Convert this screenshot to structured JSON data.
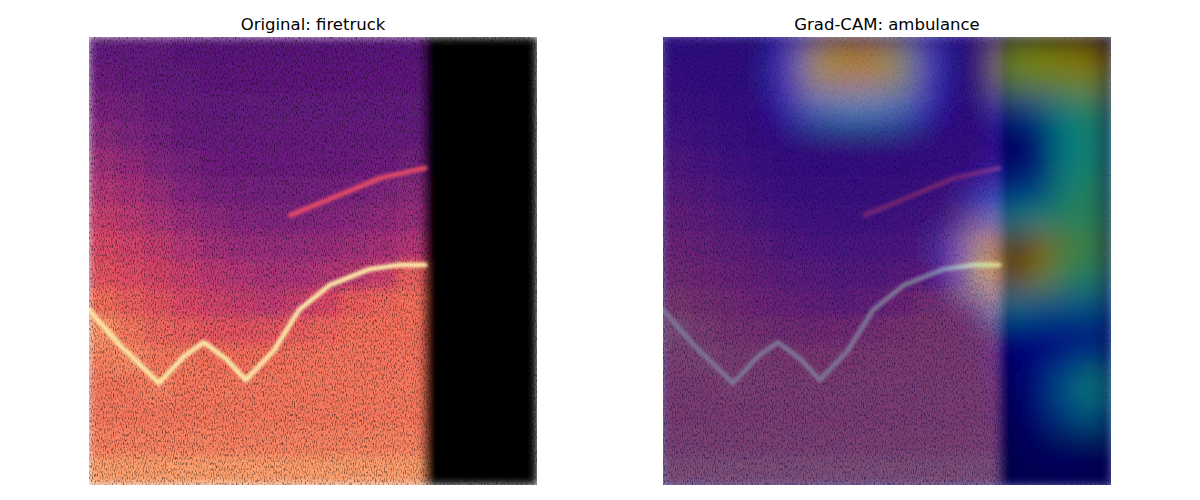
{
  "chart_data": [
    {
      "type": "image",
      "title": "Original: firetruck",
      "tick_labels": false,
      "xlim": [
        0,
        16
      ],
      "ylim": [
        16,
        0
      ],
      "cells": [
        [
          0.3,
          0.3,
          0.3,
          0.28,
          0.28,
          0.28,
          0.28,
          0.28,
          0.28,
          0.28,
          0.28,
          0.28,
          0,
          0,
          0,
          0
        ],
        [
          0.33,
          0.31,
          0.3,
          0.3,
          0.29,
          0.29,
          0.29,
          0.29,
          0.29,
          0.29,
          0.29,
          0.29,
          0,
          0,
          0,
          0
        ],
        [
          0.36,
          0.34,
          0.32,
          0.31,
          0.3,
          0.3,
          0.3,
          0.3,
          0.3,
          0.3,
          0.3,
          0.3,
          0,
          0,
          0,
          0
        ],
        [
          0.4,
          0.37,
          0.34,
          0.32,
          0.31,
          0.31,
          0.31,
          0.31,
          0.31,
          0.31,
          0.31,
          0.31,
          0,
          0,
          0,
          0
        ],
        [
          0.45,
          0.42,
          0.38,
          0.35,
          0.33,
          0.32,
          0.32,
          0.32,
          0.32,
          0.32,
          0.33,
          0.34,
          0,
          0,
          0,
          0
        ],
        [
          0.5,
          0.47,
          0.43,
          0.39,
          0.36,
          0.35,
          0.34,
          0.34,
          0.35,
          0.36,
          0.38,
          0.4,
          0,
          0,
          0,
          0
        ],
        [
          0.55,
          0.52,
          0.48,
          0.44,
          0.41,
          0.39,
          0.38,
          0.38,
          0.39,
          0.4,
          0.42,
          0.44,
          0,
          0,
          0,
          0
        ],
        [
          0.6,
          0.57,
          0.54,
          0.5,
          0.46,
          0.44,
          0.43,
          0.43,
          0.44,
          0.45,
          0.47,
          0.5,
          0,
          0,
          0,
          0
        ],
        [
          0.63,
          0.61,
          0.58,
          0.55,
          0.52,
          0.5,
          0.48,
          0.48,
          0.5,
          0.52,
          0.56,
          0.66,
          0,
          0,
          0,
          0
        ],
        [
          0.7,
          0.66,
          0.63,
          0.6,
          0.57,
          0.55,
          0.53,
          0.56,
          0.6,
          0.66,
          0.68,
          0.7,
          0,
          0,
          0,
          0
        ],
        [
          0.78,
          0.72,
          0.68,
          0.66,
          0.64,
          0.63,
          0.64,
          0.66,
          0.68,
          0.7,
          0.7,
          0.7,
          0,
          0,
          0,
          0
        ],
        [
          0.74,
          0.76,
          0.72,
          0.72,
          0.7,
          0.7,
          0.7,
          0.71,
          0.71,
          0.71,
          0.71,
          0.71,
          0,
          0,
          0,
          0
        ],
        [
          0.72,
          0.72,
          0.74,
          0.72,
          0.72,
          0.72,
          0.72,
          0.72,
          0.72,
          0.72,
          0.72,
          0.72,
          0,
          0,
          0,
          0
        ],
        [
          0.72,
          0.72,
          0.72,
          0.72,
          0.72,
          0.72,
          0.72,
          0.72,
          0.72,
          0.72,
          0.72,
          0.72,
          0,
          0,
          0,
          0
        ],
        [
          0.74,
          0.74,
          0.74,
          0.74,
          0.74,
          0.74,
          0.74,
          0.74,
          0.74,
          0.74,
          0.74,
          0.74,
          0,
          0,
          0,
          0
        ],
        [
          0.8,
          0.8,
          0.8,
          0.8,
          0.8,
          0.8,
          0.8,
          0.8,
          0.8,
          0.8,
          0.8,
          0.8,
          0,
          0,
          0,
          0
        ]
      ],
      "tracks": [
        {
          "intensity": 0.95,
          "x": [
            0,
            1.1,
            2.5,
            3.4,
            4.1,
            4.9,
            5.6,
            6.6,
            7.5,
            8.6,
            10,
            11.1,
            12
          ],
          "y": [
            9.75,
            11,
            12.36,
            11.4,
            10.9,
            11.5,
            12.25,
            11.2,
            9.75,
            8.86,
            8.3,
            8.14,
            8.14
          ]
        },
        {
          "intensity": 0.6,
          "x": [
            7.2,
            8.96,
            10.4,
            12
          ],
          "y": [
            6.36,
            5.64,
            5.04,
            4.68
          ]
        }
      ]
    },
    {
      "type": "heatmap",
      "title": "Grad-CAM: ambulance",
      "tick_labels": false,
      "xlim": [
        0,
        16
      ],
      "ylim": [
        16,
        0
      ],
      "cells": [
        [
          0,
          0,
          0,
          0,
          0.2,
          0.6,
          0.65,
          0.65,
          0.55,
          0.2,
          0,
          0,
          0.6,
          0.62,
          0.65,
          0.7
        ],
        [
          0,
          0,
          0,
          0,
          0.2,
          0.6,
          0.65,
          0.65,
          0.55,
          0.2,
          0,
          0,
          0.55,
          0.58,
          0.6,
          0.62
        ],
        [
          0,
          0,
          0,
          0,
          0.1,
          0.3,
          0.35,
          0.35,
          0.3,
          0.1,
          0,
          0,
          0.2,
          0.3,
          0.4,
          0.45
        ],
        [
          0,
          0,
          0,
          0,
          0,
          0,
          0,
          0,
          0,
          0,
          0,
          0,
          0.08,
          0.1,
          0.38,
          0.42
        ],
        [
          0,
          0,
          0,
          0,
          0,
          0,
          0,
          0,
          0,
          0,
          0,
          0,
          0.08,
          0.1,
          0.38,
          0.42
        ],
        [
          0,
          0,
          0,
          0,
          0,
          0,
          0,
          0,
          0,
          0,
          0,
          0.1,
          0.2,
          0.25,
          0.42,
          0.45
        ],
        [
          0,
          0,
          0,
          0,
          0,
          0,
          0,
          0,
          0,
          0,
          0,
          0.25,
          0.35,
          0.4,
          0.45,
          0.45
        ],
        [
          0,
          0,
          0,
          0,
          0,
          0,
          0,
          0,
          0,
          0,
          0.2,
          0.6,
          1.0,
          0.7,
          0.5,
          0.5
        ],
        [
          0,
          0,
          0,
          0,
          0,
          0,
          0,
          0,
          0,
          0,
          0.15,
          0.5,
          0.9,
          0.6,
          0.45,
          0.45
        ],
        [
          0,
          0,
          0,
          0,
          0,
          0,
          0,
          0,
          0,
          0,
          0,
          0.15,
          0.35,
          0.3,
          0.3,
          0.3
        ],
        [
          0,
          0,
          0,
          0,
          0,
          0,
          0,
          0,
          0,
          0,
          0,
          0,
          0.15,
          0.15,
          0.15,
          0.15
        ],
        [
          0,
          0,
          0,
          0,
          0,
          0,
          0,
          0,
          0,
          0,
          0,
          0,
          0.1,
          0.12,
          0.2,
          0.25
        ],
        [
          0,
          0,
          0,
          0,
          0,
          0,
          0,
          0,
          0,
          0,
          0,
          0,
          0.05,
          0.15,
          0.3,
          0.4
        ],
        [
          0,
          0,
          0,
          0,
          0,
          0,
          0,
          0,
          0,
          0,
          0,
          0,
          0.05,
          0.1,
          0.25,
          0.3
        ],
        [
          0,
          0,
          0,
          0,
          0,
          0,
          0,
          0,
          0,
          0,
          0,
          0,
          0.03,
          0.05,
          0.05,
          0.05
        ],
        [
          0,
          0,
          0,
          0,
          0,
          0,
          0,
          0,
          0,
          0,
          0,
          0,
          0.03,
          0.05,
          0.05,
          0.05
        ]
      ]
    }
  ]
}
